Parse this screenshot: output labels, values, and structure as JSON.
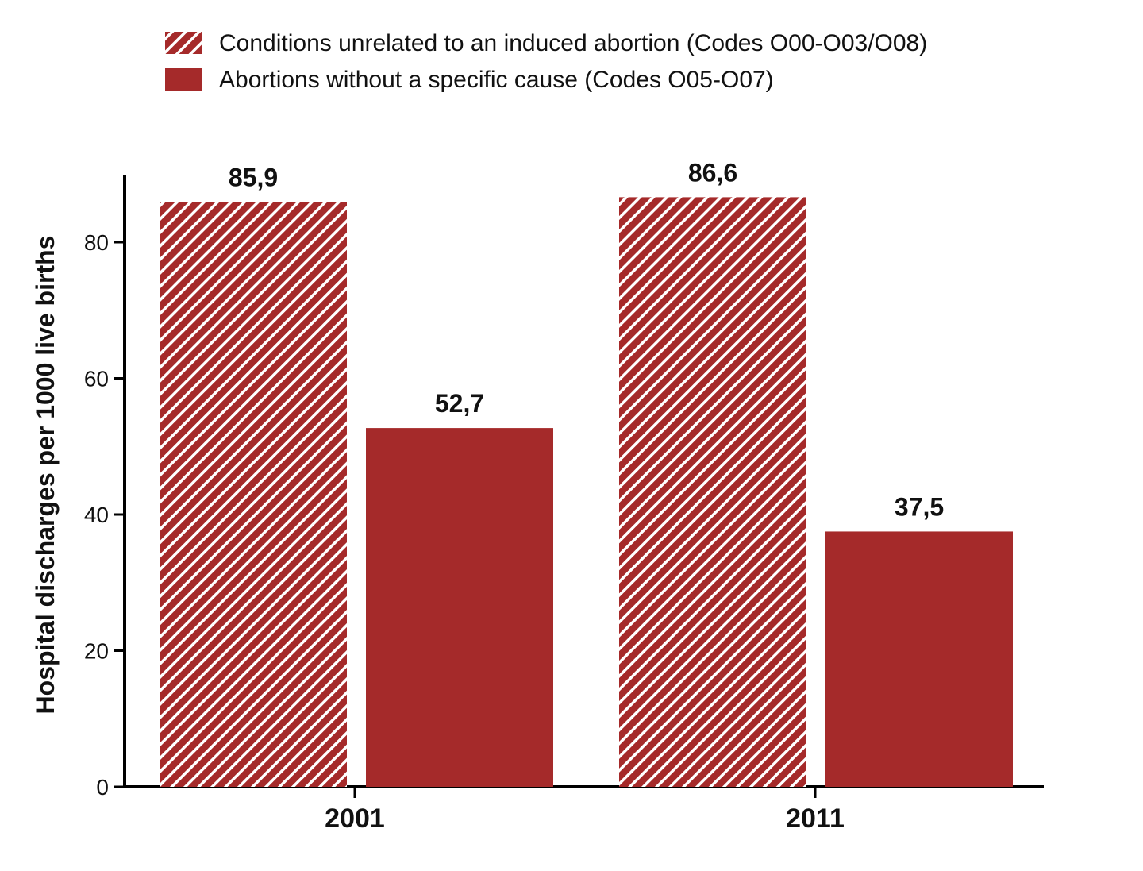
{
  "chart_data": {
    "type": "bar",
    "title": "",
    "xlabel": "",
    "ylabel": "Hospital discharges per 1000 live births",
    "categories": [
      "2001",
      "2011"
    ],
    "series": [
      {
        "name": "Conditions unrelated to an induced abortion (Codes O00-O03/O08)",
        "values": [
          85.9,
          86.6
        ],
        "labels": [
          "85,9",
          "86,6"
        ],
        "color": "#a52a2a",
        "fill": "hatched"
      },
      {
        "name": "Abortions without a specific cause (Codes O05-O07)",
        "values": [
          52.7,
          37.5
        ],
        "labels": [
          "52,7",
          "37,5"
        ],
        "color": "#a52a2a",
        "fill": "solid"
      }
    ],
    "ylim": [
      0,
      90
    ],
    "yticks": [
      0,
      20,
      40,
      60,
      80
    ],
    "grid": false,
    "legend_position": "top"
  }
}
